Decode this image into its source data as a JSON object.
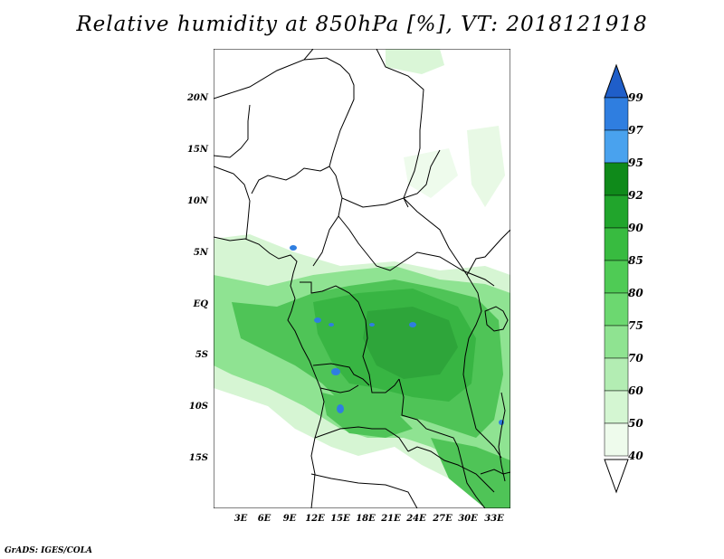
{
  "title": "Relative humidity at 850hPa [%], VT: 2018121918",
  "footer": "GrADS: IGES/COLA",
  "lat_labels": [
    "20N",
    "15N",
    "10N",
    "5N",
    "EQ",
    "5S",
    "10S",
    "15S"
  ],
  "lon_labels": [
    "3E",
    "6E",
    "9E",
    "12E",
    "15E",
    "18E",
    "21E",
    "24E",
    "27E",
    "30E",
    "33E"
  ],
  "colorbar": {
    "labels": [
      "99",
      "97",
      "95",
      "92",
      "90",
      "85",
      "80",
      "75",
      "70",
      "60",
      "50",
      "40"
    ],
    "colors": [
      "#1f5ec9",
      "#2f7ee0",
      "#49a2ee",
      "#0f8a1a",
      "#21a52c",
      "#38bb40",
      "#4fcb55",
      "#6cd870",
      "#8fe391",
      "#b3edb3",
      "#d4f6d2",
      "#eefbec"
    ]
  },
  "map_colors": {
    "light": "#d6f5d3",
    "mid": "#8fe392",
    "dark": "#4fc457",
    "darker": "#2ea53a",
    "blue": "#2f7ee0"
  }
}
